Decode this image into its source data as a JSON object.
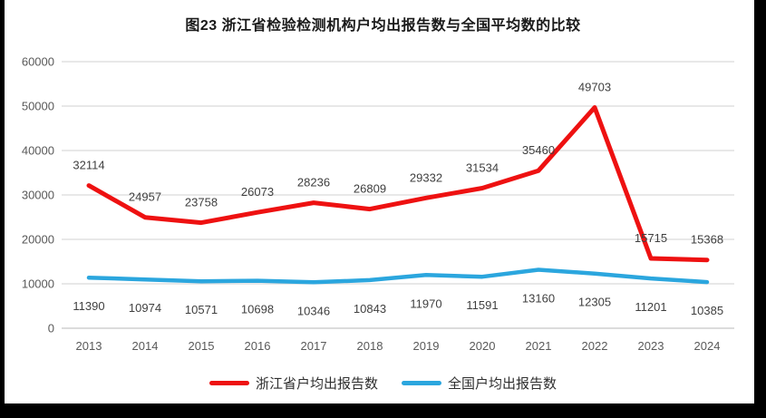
{
  "chart_data": {
    "type": "line",
    "title": "图23  浙江省检验检测机构户均出报告数与全国平均数的比较",
    "categories": [
      "2013",
      "2014",
      "2015",
      "2016",
      "2017",
      "2018",
      "2019",
      "2020",
      "2021",
      "2022",
      "2023",
      "2024"
    ],
    "series": [
      {
        "name": "浙江省户均出报告数",
        "color": "#ee1111",
        "line_width": 5,
        "data_labels": "above",
        "values": [
          32114,
          24957,
          23758,
          26073,
          28236,
          26809,
          29332,
          31534,
          35460,
          49703,
          15715,
          15368
        ]
      },
      {
        "name": "全国户均出报告数",
        "color": "#2ba6de",
        "line_width": 4.5,
        "data_labels": "below",
        "values": [
          11390,
          10974,
          10571,
          10698,
          10346,
          10843,
          11970,
          11591,
          13160,
          12305,
          11201,
          10385
        ]
      }
    ],
    "ylim": [
      0,
      60000
    ],
    "yticks": [
      0,
      10000,
      20000,
      30000,
      40000,
      50000,
      60000
    ],
    "xlabel": "",
    "ylabel": "",
    "grid": true,
    "legend_position": "bottom",
    "colors": {
      "gridline": "#d9d9d9",
      "axis_line": "#c6c6c6",
      "tick_text": "#595959",
      "data_label_text": "#3f3f3f"
    }
  }
}
